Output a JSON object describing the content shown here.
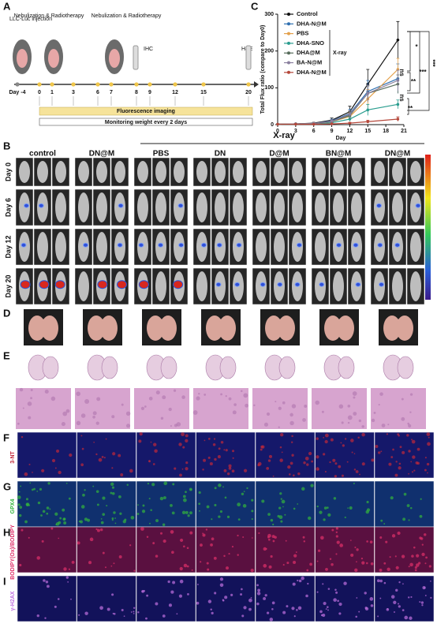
{
  "panel_a": {
    "label": "A",
    "injection": "LLC-Luc injection",
    "treatment_1": "Nebulization & Radiotherapy",
    "treatment_2": "Nebulization & Radiotherapy",
    "ihc": "IHC",
    "he": "H&E",
    "days": [
      "Day -4",
      "0",
      "1",
      "3",
      "6",
      "7",
      "8",
      "9",
      "12",
      "15",
      "20"
    ],
    "imaging": "Fluorescence imaging",
    "monitoring": "Monitoring weight every 2 days"
  },
  "chart_data": {
    "type": "line",
    "panel_label": "C",
    "x_label": "Day",
    "y_label": "Total Flux ratio (compare to Day0)",
    "x": [
      0,
      3,
      6,
      9,
      12,
      15,
      20
    ],
    "xlim": [
      0,
      21
    ],
    "xticks": [
      0,
      3,
      6,
      9,
      12,
      15,
      18,
      21
    ],
    "ylim": [
      0,
      300
    ],
    "yticks": [
      0,
      100,
      200,
      300
    ],
    "series": [
      {
        "name": "Control",
        "color": "#111111",
        "values": [
          1,
          2,
          4,
          12,
          35,
          110,
          230
        ],
        "errors": [
          0,
          1,
          2,
          6,
          15,
          40,
          50
        ]
      },
      {
        "name": "DHA-N@M",
        "color": "#2e6fb0",
        "values": [
          1,
          2,
          3,
          10,
          30,
          90,
          125
        ],
        "errors": [
          0,
          1,
          2,
          5,
          12,
          30,
          40
        ]
      },
      {
        "name": "PBS",
        "color": "#e3a04b",
        "values": [
          1,
          2,
          3,
          8,
          22,
          70,
          150
        ],
        "errors": [
          0,
          1,
          1,
          4,
          10,
          25,
          30
        ]
      },
      {
        "name": "DHA-SNO",
        "color": "#2a9d8f",
        "values": [
          1,
          1,
          2,
          5,
          15,
          40,
          55
        ],
        "errors": [
          0,
          1,
          1,
          3,
          6,
          15,
          12
        ]
      },
      {
        "name": "DHA@M",
        "color": "#556b5a",
        "values": [
          1,
          2,
          3,
          8,
          25,
          85,
          110
        ],
        "errors": [
          0,
          1,
          2,
          4,
          10,
          20,
          25
        ]
      },
      {
        "name": "BA-N@M",
        "color": "#8a7f9e",
        "values": [
          1,
          2,
          3,
          9,
          28,
          85,
          120
        ],
        "errors": [
          0,
          1,
          2,
          4,
          10,
          22,
          28
        ]
      },
      {
        "name": "DHA-N@M",
        "color": "#b5473a",
        "values": [
          1,
          1,
          1,
          2,
          4,
          8,
          15
        ],
        "errors": [
          0,
          0,
          1,
          1,
          2,
          4,
          6
        ]
      }
    ],
    "bracket_label": "X-ray",
    "annotations": [
      "*",
      "**",
      "***",
      "***",
      "ns",
      "ns",
      "**"
    ]
  },
  "panel_b": {
    "label": "B",
    "xray": "X-ray",
    "groups": [
      "control",
      "DN@M",
      "PBS",
      "DN",
      "D@M",
      "BN@M",
      "DN@M"
    ],
    "days": [
      "Day 0",
      "Day 6",
      "Day 12",
      "Day 20"
    ]
  },
  "panel_d": {
    "label": "D"
  },
  "panel_e": {
    "label": "E"
  },
  "panel_f": {
    "label": "F",
    "stain": "3-NT"
  },
  "panel_g": {
    "label": "G",
    "stain": "GPX4"
  },
  "panel_h": {
    "label": "H",
    "stain": "BODIPY(Ox)/BODIPY"
  },
  "panel_i": {
    "label": "I",
    "stain": "γ-H2AX"
  }
}
